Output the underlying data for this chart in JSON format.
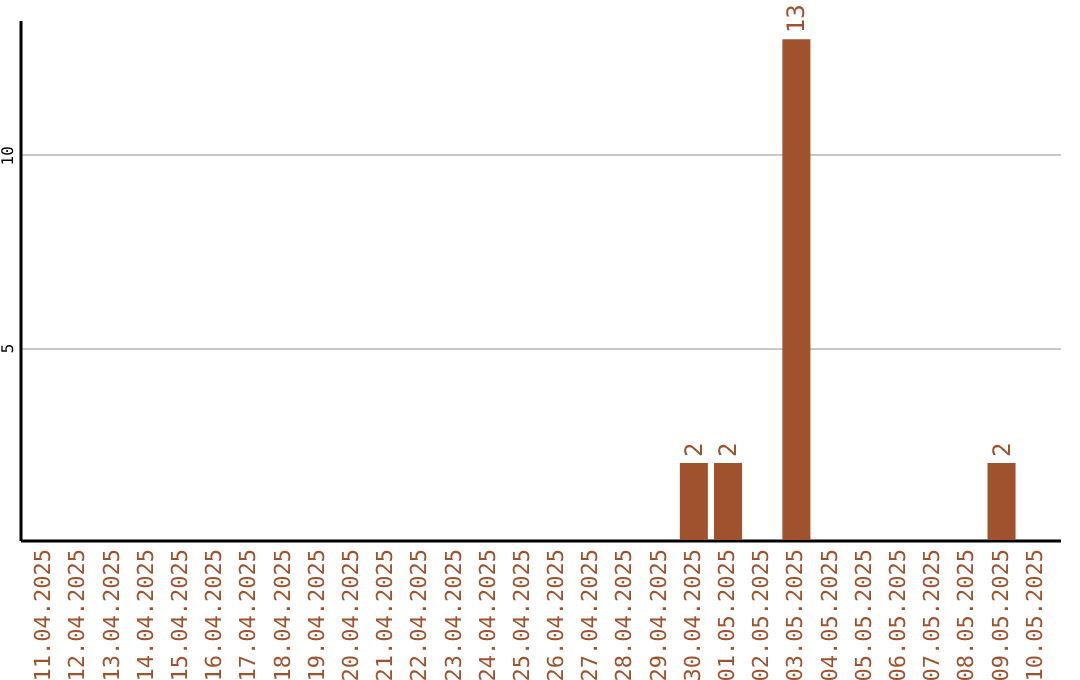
{
  "chart_data": {
    "type": "bar",
    "categories": [
      "11.04.2025",
      "12.04.2025",
      "13.04.2025",
      "14.04.2025",
      "15.04.2025",
      "16.04.2025",
      "17.04.2025",
      "18.04.2025",
      "19.04.2025",
      "20.04.2025",
      "21.04.2025",
      "22.04.2025",
      "23.04.2025",
      "24.04.2025",
      "25.04.2025",
      "26.04.2025",
      "27.04.2025",
      "28.04.2025",
      "29.04.2025",
      "30.04.2025",
      "01.05.2025",
      "02.05.2025",
      "03.05.2025",
      "04.05.2025",
      "05.05.2025",
      "06.05.2025",
      "07.05.2025",
      "08.05.2025",
      "09.05.2025",
      "10.05.2025"
    ],
    "series": [
      {
        "color": "#a0522d",
        "values": [
          0,
          0,
          0,
          0,
          0,
          0,
          0,
          0,
          0,
          0,
          0,
          0,
          0,
          0,
          0,
          0,
          0,
          0,
          0,
          2,
          2,
          0,
          13,
          0,
          0,
          0,
          0,
          0,
          2,
          0
        ],
        "value_labels": [
          null,
          null,
          null,
          null,
          null,
          null,
          null,
          null,
          null,
          null,
          null,
          null,
          null,
          null,
          null,
          null,
          null,
          null,
          null,
          "2",
          "2",
          null,
          "13",
          null,
          null,
          null,
          null,
          null,
          "2",
          null
        ]
      }
    ],
    "ylim": [
      0,
      13.5
    ],
    "yticks": [
      5,
      10
    ],
    "grid": "y"
  }
}
